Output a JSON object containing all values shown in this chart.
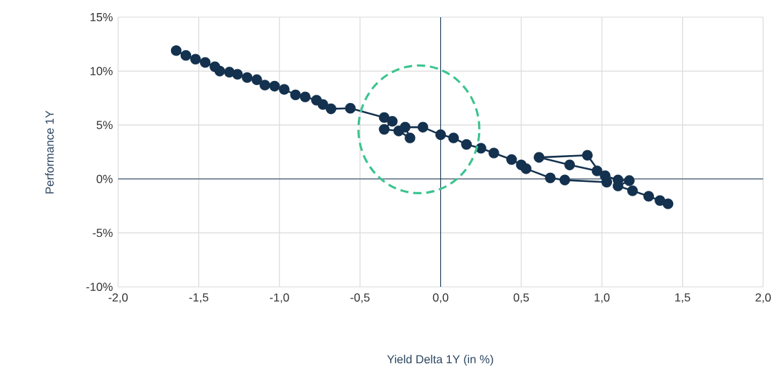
{
  "chart_data": {
    "type": "line",
    "xlabel": "Yield Delta 1Y (in %)",
    "ylabel": "Performance 1Y",
    "color": "#14324f",
    "marker": "circle",
    "line_style": "solid",
    "grid": true,
    "x": [
      -1.64,
      -1.58,
      -1.52,
      -1.46,
      -1.4,
      -1.37,
      -1.31,
      -1.26,
      -1.2,
      -1.14,
      -1.09,
      -1.03,
      -0.97,
      -0.9,
      -0.84,
      -0.77,
      -0.73,
      -0.68,
      -0.56,
      -0.35,
      -0.3,
      -0.35,
      -0.26,
      -0.19,
      -0.22,
      -0.11,
      0.0,
      0.08,
      0.16,
      0.25,
      0.33,
      0.44,
      0.5,
      0.53,
      0.68,
      0.77,
      1.03,
      0.91,
      0.61,
      0.8,
      0.97,
      1.02,
      1.1,
      1.17,
      1.1,
      1.19,
      1.29,
      1.36,
      1.41
    ],
    "values": [
      11.9,
      11.45,
      11.1,
      10.8,
      10.4,
      10.0,
      9.9,
      9.7,
      9.4,
      9.2,
      8.7,
      8.6,
      8.3,
      7.8,
      7.6,
      7.3,
      6.9,
      6.5,
      6.55,
      5.7,
      5.35,
      4.6,
      4.45,
      3.8,
      4.8,
      4.8,
      4.1,
      3.8,
      3.2,
      2.85,
      2.4,
      1.8,
      1.3,
      0.95,
      0.1,
      -0.1,
      -0.3,
      2.2,
      2.0,
      1.3,
      0.75,
      0.3,
      -0.1,
      -0.15,
      -0.65,
      -1.1,
      -1.6,
      -2.0,
      -2.3
    ],
    "xlim": [
      -2.0,
      2.0
    ],
    "xticks": [
      {
        "value": -2.0,
        "label": "-2,0"
      },
      {
        "value": -1.5,
        "label": "-1,5"
      },
      {
        "value": -1.0,
        "label": "-1,0"
      },
      {
        "value": -0.5,
        "label": "-0,5"
      },
      {
        "value": 0.0,
        "label": "0,0"
      },
      {
        "value": 0.5,
        "label": "0,5"
      },
      {
        "value": 1.0,
        "label": "1,0"
      },
      {
        "value": 1.5,
        "label": "1,5"
      },
      {
        "value": 2.0,
        "label": "2,0"
      }
    ],
    "ylim": [
      -10,
      15
    ],
    "yticks": [
      {
        "value": -10,
        "label": "-10%"
      },
      {
        "value": -5,
        "label": "-5%"
      },
      {
        "value": 0,
        "label": "0%"
      },
      {
        "value": 5,
        "label": "5%"
      },
      {
        "value": 10,
        "label": "10%"
      },
      {
        "value": 15,
        "label": "15%"
      }
    ]
  }
}
